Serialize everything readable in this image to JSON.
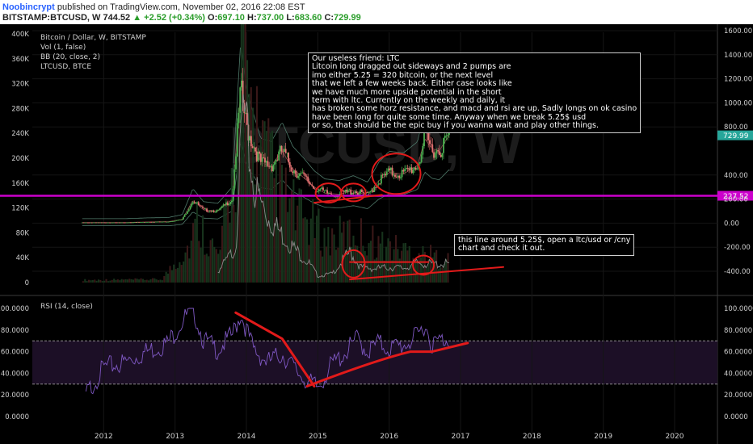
{
  "header": {
    "author": "Noobincrypt",
    "published_text": "published on TradingView.com, November 02, 2016 22:08 EST",
    "symbol": "BITSTAMP:BTCUSD, W",
    "last": "744.52",
    "change": "+2.52 (+0.34%)",
    "o_label": "O:",
    "open": "697.10",
    "h_label": "H:",
    "high": "737.00",
    "l_label": "L:",
    "low": "683.60",
    "c_label": "C:",
    "close": "729.99"
  },
  "legend": {
    "main": "Bitcoin / Dollar, W, BITSTAMP",
    "vol": "Vol (1, false)",
    "bb": "BB (20, close, 2)",
    "ltc": "LTCUSD, BTCE",
    "rsi": "RSI (14, close)"
  },
  "notes": {
    "main": [
      "Our useless friend: LTC",
      "Litcoin long dragged out sideways and 2 pumps are",
      "imo either 5.25 = 320 bitcoin, or the next level",
      "that we left a few weeks back. Either case looks like",
      "we have much more upside potential in the short",
      "term with ltc. Currently on the weekly and daily, it",
      "has broken some horz resistance, and macd and rsi are up. Sadly longs on ok casino",
      "have been long for quite some time. Anyway when we break 5.25$ usd",
      "or so, that should be the epic buy if you wanna wait and play other things."
    ],
    "line": [
      "this line around 5.25$, open a ltc/usd or /cny",
      "chart and check it out."
    ]
  },
  "watermark": "BTCUSD, W",
  "colors": {
    "background": "#000000",
    "price_line": "#cc00cc",
    "up": "#4caf50",
    "down": "#e57373",
    "rsi_line": "#7e57c2",
    "annotation": "#e21a1a"
  },
  "chart_data": {
    "type": "line",
    "x_axis": {
      "ticks": [
        "2012",
        "2013",
        "2014",
        "2015",
        "2016",
        "2017",
        "2018",
        "2019",
        "2020"
      ]
    },
    "left_axis": {
      "ticks": [
        "400K",
        "360K",
        "320K",
        "280K",
        "240K",
        "200K",
        "160K",
        "120K",
        "80K",
        "40K",
        "0"
      ],
      "range": [
        0,
        400000
      ]
    },
    "right_axis": {
      "ticks": [
        "1600.00",
        "1400.00",
        "1200.00",
        "1000.00",
        "800.00",
        "400.00",
        "200.00",
        "0.00",
        "-200.00",
        "-400.00"
      ],
      "range": [
        -400,
        1600
      ]
    },
    "price_labels": {
      "last": "729.99",
      "level": "227.52"
    },
    "horizontal_line": 227.52,
    "series": [
      {
        "name": "BTCUSD",
        "x": [
          2011.7,
          2012.0,
          2012.3,
          2012.6,
          2012.9,
          2013.1,
          2013.25,
          2013.4,
          2013.6,
          2013.8,
          2013.92,
          2014.0,
          2014.1,
          2014.2,
          2014.35,
          2014.5,
          2014.65,
          2014.8,
          2014.95,
          2015.1,
          2015.3,
          2015.5,
          2015.7,
          2015.85,
          2016.0,
          2016.2,
          2016.4,
          2016.5,
          2016.6,
          2016.7,
          2016.84
        ],
        "y": [
          5,
          5,
          5,
          10,
          12,
          30,
          190,
          110,
          100,
          200,
          1100,
          800,
          650,
          500,
          480,
          600,
          450,
          380,
          300,
          250,
          240,
          270,
          230,
          350,
          420,
          410,
          480,
          700,
          620,
          600,
          730
        ]
      },
      {
        "name": "LTCUSD, BTCE",
        "x": [
          2013.6,
          2013.85,
          2013.95,
          2014.1,
          2014.3,
          2014.6,
          2014.9,
          2015.0,
          2015.2,
          2015.45,
          2015.6,
          2015.8,
          2016.0,
          2016.2,
          2016.4,
          2016.6,
          2016.84
        ],
        "y": [
          2.5,
          8,
          40,
          22,
          15,
          9,
          4,
          1.5,
          2,
          7,
          3.5,
          3.2,
          3.5,
          3.3,
          4.5,
          4.2,
          4.3
        ]
      },
      {
        "name": "RSI (14, close)",
        "x": [
          2011.75,
          2012.0,
          2012.3,
          2012.6,
          2012.9,
          2013.1,
          2013.25,
          2013.4,
          2013.6,
          2013.8,
          2013.92,
          2014.1,
          2014.3,
          2014.5,
          2014.7,
          2014.9,
          2015.0,
          2015.2,
          2015.4,
          2015.55,
          2015.7,
          2015.85,
          2016.0,
          2016.2,
          2016.4,
          2016.5,
          2016.6,
          2016.7,
          2016.84
        ],
        "y": [
          20,
          45,
          50,
          60,
          68,
          88,
          100,
          70,
          62,
          75,
          95,
          62,
          50,
          58,
          42,
          30,
          27,
          48,
          60,
          72,
          60,
          68,
          63,
          66,
          74,
          86,
          66,
          70,
          72
        ]
      }
    ],
    "rsi_axis": {
      "ticks": [
        "100.0000",
        "80.0000",
        "60.0000",
        "40.0000",
        "20.0000",
        "0.0000"
      ],
      "range": [
        0,
        100
      ],
      "bands": [
        30,
        70
      ]
    }
  }
}
